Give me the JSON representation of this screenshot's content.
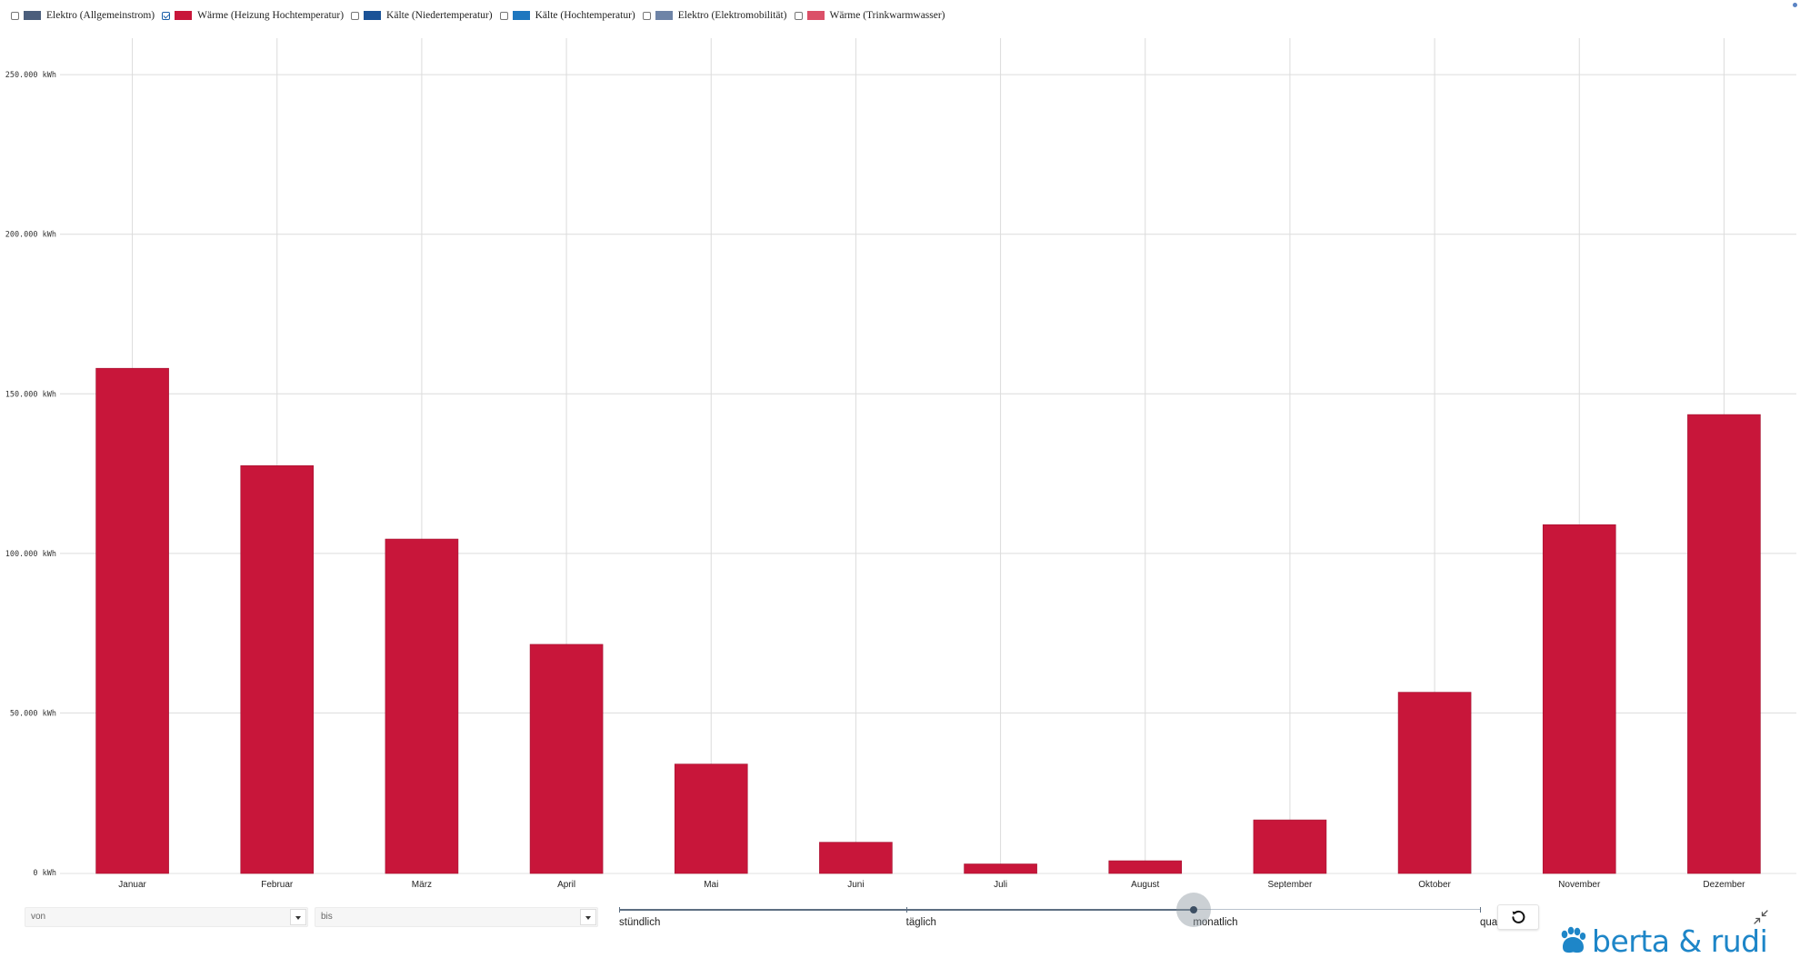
{
  "legend": {
    "items": [
      {
        "label": "Elektro (Allgemeinstrom)",
        "checked": false,
        "color": "#4b5e7c"
      },
      {
        "label": "Wärme (Heizung Hochtemperatur)",
        "checked": true,
        "color": "#c8163a"
      },
      {
        "label": "Kälte (Niedertemperatur)",
        "checked": false,
        "color": "#1a5297"
      },
      {
        "label": "Kälte (Hochtemperatur)",
        "checked": false,
        "color": "#1e77bf"
      },
      {
        "label": "Elektro (Elektromobilität)",
        "checked": false,
        "color": "#6e84a7"
      },
      {
        "label": "Wärme (Trinkwarmwasser)",
        "checked": false,
        "color": "#db5068"
      }
    ]
  },
  "chart_data": {
    "type": "bar",
    "categories": [
      "Januar",
      "Februar",
      "März",
      "April",
      "Mai",
      "Juni",
      "Juli",
      "August",
      "September",
      "Oktober",
      "November",
      "Dezember"
    ],
    "series": [
      {
        "name": "Wärme (Heizung Hochtemperatur)",
        "color": "#c8163a",
        "values": [
          158000,
          127500,
          104500,
          71500,
          34000,
          9500,
          2700,
          3700,
          16500,
          56500,
          109000,
          143500
        ]
      }
    ],
    "ylim": [
      0,
      262000
    ],
    "yticks": [
      0,
      50000,
      100000,
      150000,
      200000,
      250000
    ],
    "ytick_labels": [
      "0 kWh",
      "50.000 kWh",
      "100.000 kWh",
      "150.000 kWh",
      "200.000 kWh",
      "250.000 kWh"
    ],
    "grid": true,
    "legend_position": "top-left"
  },
  "controls": {
    "from": {
      "placeholder": "von"
    },
    "to": {
      "placeholder": "bis"
    },
    "resolution": {
      "options": [
        "stündlich",
        "täglich",
        "monatlich",
        "quar"
      ],
      "selected": "monatlich",
      "selected_fraction": 0.667
    },
    "reset_icon": "reset-icon",
    "collapse_icon": "collapse-icon"
  },
  "logo": {
    "text": "berta & rudi",
    "color": "#1e86c8",
    "icon": "paw-icon"
  }
}
